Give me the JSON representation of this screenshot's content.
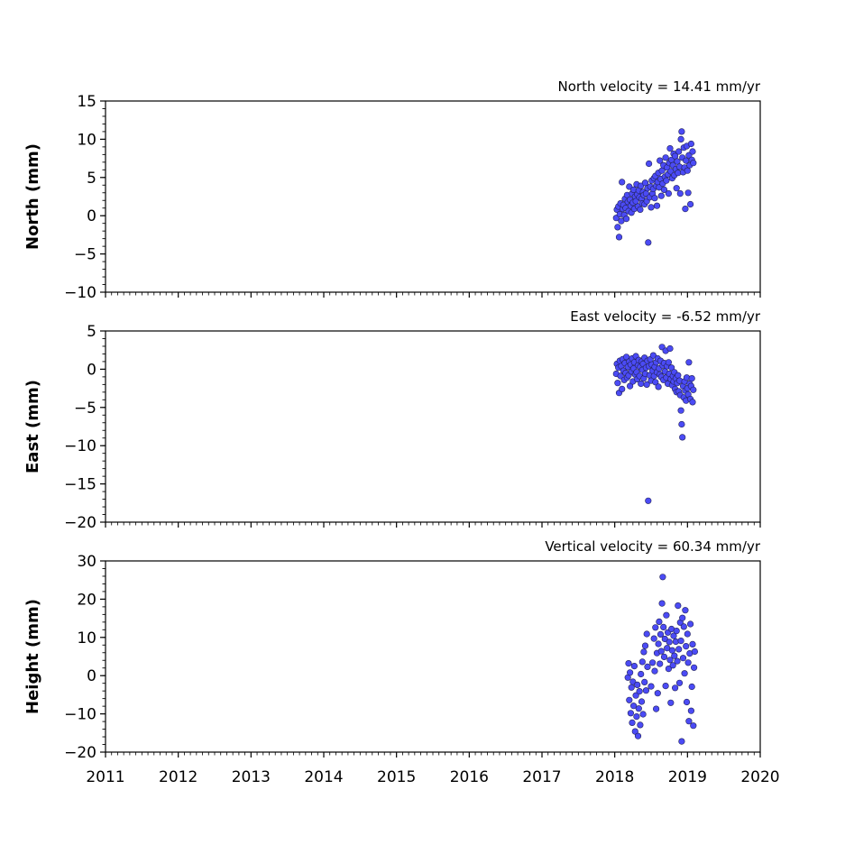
{
  "x_ticks": [
    "2011",
    "2012",
    "2013",
    "2014",
    "2015",
    "2016",
    "2017",
    "2018",
    "2019",
    "2020"
  ],
  "chart_data": [
    {
      "type": "scatter",
      "title": "North velocity = 14.41 mm/yr",
      "ylabel": "North (mm)",
      "xlim": [
        2011,
        2020
      ],
      "ylim": [
        -10,
        15
      ],
      "y_ticks": [
        -10,
        -5,
        0,
        5,
        10,
        15
      ],
      "y_tick_labels": [
        "−10",
        "−5",
        "0",
        "5",
        "10",
        "15"
      ],
      "marker_color": "#4b4bf5",
      "points": [
        [
          2018.02,
          -0.3
        ],
        [
          2018.03,
          0.8
        ],
        [
          2018.04,
          -1.5
        ],
        [
          2018.05,
          1.2
        ],
        [
          2018.06,
          -2.8
        ],
        [
          2018.07,
          0.2
        ],
        [
          2018.08,
          1.6
        ],
        [
          2018.09,
          -0.7
        ],
        [
          2018.1,
          4.4
        ],
        [
          2018.11,
          0.9
        ],
        [
          2018.12,
          1.4
        ],
        [
          2018.13,
          0.1
        ],
        [
          2018.14,
          2.2
        ],
        [
          2018.15,
          1.0
        ],
        [
          2018.16,
          -0.4
        ],
        [
          2018.17,
          2.7
        ],
        [
          2018.18,
          1.8
        ],
        [
          2018.19,
          0.6
        ],
        [
          2018.2,
          3.8
        ],
        [
          2018.21,
          2.1
        ],
        [
          2018.22,
          1.3
        ],
        [
          2018.23,
          0.4
        ],
        [
          2018.24,
          2.9
        ],
        [
          2018.25,
          1.7
        ],
        [
          2018.26,
          3.4
        ],
        [
          2018.27,
          0.9
        ],
        [
          2018.28,
          2.5
        ],
        [
          2018.29,
          1.9
        ],
        [
          2018.3,
          4.1
        ],
        [
          2018.31,
          2.8
        ],
        [
          2018.32,
          1.2
        ],
        [
          2018.33,
          3.3
        ],
        [
          2018.34,
          2.4
        ],
        [
          2018.35,
          0.8
        ],
        [
          2018.36,
          3.9
        ],
        [
          2018.37,
          2.2
        ],
        [
          2018.38,
          1.6
        ],
        [
          2018.39,
          3.1
        ],
        [
          2018.4,
          2.7
        ],
        [
          2018.41,
          1.5
        ],
        [
          2018.42,
          4.3
        ],
        [
          2018.43,
          2.9
        ],
        [
          2018.44,
          1.9
        ],
        [
          2018.45,
          3.6
        ],
        [
          2018.46,
          -3.5
        ],
        [
          2018.47,
          6.8
        ],
        [
          2018.48,
          2.4
        ],
        [
          2018.49,
          3.8
        ],
        [
          2018.5,
          1.1
        ],
        [
          2018.51,
          4.6
        ],
        [
          2018.52,
          2.9
        ],
        [
          2018.53,
          3.5
        ],
        [
          2018.54,
          4.9
        ],
        [
          2018.55,
          2.3
        ],
        [
          2018.56,
          5.2
        ],
        [
          2018.57,
          3.9
        ],
        [
          2018.58,
          1.3
        ],
        [
          2018.59,
          4.4
        ],
        [
          2018.6,
          5.6
        ],
        [
          2018.61,
          3.7
        ],
        [
          2018.62,
          7.2
        ],
        [
          2018.63,
          4.8
        ],
        [
          2018.64,
          2.6
        ],
        [
          2018.65,
          5.9
        ],
        [
          2018.66,
          4.2
        ],
        [
          2018.67,
          6.6
        ],
        [
          2018.68,
          3.4
        ],
        [
          2018.69,
          5.1
        ],
        [
          2018.7,
          7.6
        ],
        [
          2018.71,
          4.6
        ],
        [
          2018.72,
          6.3
        ],
        [
          2018.73,
          5.4
        ],
        [
          2018.74,
          2.9
        ],
        [
          2018.75,
          6.9
        ],
        [
          2018.76,
          8.8
        ],
        [
          2018.77,
          5.8
        ],
        [
          2018.78,
          7.3
        ],
        [
          2018.79,
          4.9
        ],
        [
          2018.8,
          6.6
        ],
        [
          2018.81,
          8.1
        ],
        [
          2018.82,
          5.3
        ],
        [
          2018.83,
          7.8
        ],
        [
          2018.84,
          6.1
        ],
        [
          2018.85,
          3.6
        ],
        [
          2018.86,
          7.1
        ],
        [
          2018.87,
          5.6
        ],
        [
          2018.88,
          8.4
        ],
        [
          2018.89,
          6.4
        ],
        [
          2018.9,
          2.9
        ],
        [
          2018.91,
          10.0
        ],
        [
          2018.92,
          11.0
        ],
        [
          2018.93,
          7.6
        ],
        [
          2018.94,
          5.7
        ],
        [
          2018.95,
          8.9
        ],
        [
          2018.96,
          6.3
        ],
        [
          2018.97,
          0.9
        ],
        [
          2018.98,
          7.2
        ],
        [
          2018.99,
          9.1
        ],
        [
          2019.0,
          5.9
        ],
        [
          2019.01,
          3.0
        ],
        [
          2019.02,
          7.9
        ],
        [
          2019.03,
          6.6
        ],
        [
          2019.04,
          1.5
        ],
        [
          2019.05,
          9.4
        ],
        [
          2019.06,
          7.3
        ],
        [
          2019.07,
          8.4
        ],
        [
          2019.08,
          6.9
        ]
      ]
    },
    {
      "type": "scatter",
      "title": "East velocity = -6.52 mm/yr",
      "ylabel": "East (mm)",
      "xlim": [
        2011,
        2020
      ],
      "ylim": [
        -20,
        5
      ],
      "y_ticks": [
        -20,
        -15,
        -10,
        -5,
        0,
        5
      ],
      "y_tick_labels": [
        "−20",
        "−15",
        "−10",
        "−5",
        "0",
        "5"
      ],
      "marker_color": "#4b4bf5",
      "points": [
        [
          2018.02,
          -0.6
        ],
        [
          2018.03,
          0.7
        ],
        [
          2018.04,
          -1.8
        ],
        [
          2018.05,
          0.2
        ],
        [
          2018.06,
          -3.1
        ],
        [
          2018.07,
          1.1
        ],
        [
          2018.08,
          -0.9
        ],
        [
          2018.09,
          0.4
        ],
        [
          2018.1,
          -2.6
        ],
        [
          2018.11,
          1.3
        ],
        [
          2018.12,
          -0.2
        ],
        [
          2018.13,
          -1.4
        ],
        [
          2018.14,
          0.8
        ],
        [
          2018.15,
          -0.5
        ],
        [
          2018.16,
          1.6
        ],
        [
          2018.17,
          -1.1
        ],
        [
          2018.18,
          0.3
        ],
        [
          2018.19,
          -0.8
        ],
        [
          2018.2,
          1.0
        ],
        [
          2018.21,
          -2.2
        ],
        [
          2018.22,
          0.6
        ],
        [
          2018.23,
          -0.3
        ],
        [
          2018.24,
          1.4
        ],
        [
          2018.25,
          -1.6
        ],
        [
          2018.26,
          0.1
        ],
        [
          2018.27,
          0.9
        ],
        [
          2018.28,
          -0.7
        ],
        [
          2018.29,
          1.7
        ],
        [
          2018.3,
          -0.4
        ],
        [
          2018.31,
          -1.3
        ],
        [
          2018.32,
          0.5
        ],
        [
          2018.33,
          1.2
        ],
        [
          2018.34,
          -0.9
        ],
        [
          2018.35,
          0.3
        ],
        [
          2018.36,
          -1.9
        ],
        [
          2018.37,
          1.0
        ],
        [
          2018.38,
          -0.1
        ],
        [
          2018.39,
          0.7
        ],
        [
          2018.4,
          -1.2
        ],
        [
          2018.41,
          1.5
        ],
        [
          2018.42,
          -0.6
        ],
        [
          2018.43,
          0.2
        ],
        [
          2018.44,
          -2.0
        ],
        [
          2018.45,
          1.1
        ],
        [
          2018.46,
          -17.2
        ],
        [
          2018.47,
          0.4
        ],
        [
          2018.48,
          -0.8
        ],
        [
          2018.49,
          1.3
        ],
        [
          2018.5,
          -1.5
        ],
        [
          2018.51,
          0.6
        ],
        [
          2018.52,
          -0.2
        ],
        [
          2018.53,
          1.8
        ],
        [
          2018.54,
          -0.9
        ],
        [
          2018.55,
          0.3
        ],
        [
          2018.56,
          -1.7
        ],
        [
          2018.57,
          0.9
        ],
        [
          2018.58,
          -0.4
        ],
        [
          2018.59,
          1.4
        ],
        [
          2018.6,
          -2.3
        ],
        [
          2018.61,
          0.1
        ],
        [
          2018.62,
          -0.7
        ],
        [
          2018.63,
          1.1
        ],
        [
          2018.64,
          -1.0
        ],
        [
          2018.65,
          2.9
        ],
        [
          2018.66,
          0.5
        ],
        [
          2018.67,
          -1.4
        ],
        [
          2018.68,
          0.8
        ],
        [
          2018.69,
          -0.3
        ],
        [
          2018.7,
          2.4
        ],
        [
          2018.71,
          -1.1
        ],
        [
          2018.72,
          0.4
        ],
        [
          2018.73,
          -1.9
        ],
        [
          2018.74,
          0.9
        ],
        [
          2018.75,
          -0.6
        ],
        [
          2018.76,
          2.7
        ],
        [
          2018.77,
          -1.3
        ],
        [
          2018.78,
          0.2
        ],
        [
          2018.79,
          -2.1
        ],
        [
          2018.8,
          -0.9
        ],
        [
          2018.81,
          -1.6
        ],
        [
          2018.82,
          -0.4
        ],
        [
          2018.83,
          -2.6
        ],
        [
          2018.84,
          -1.2
        ],
        [
          2018.85,
          -3.0
        ],
        [
          2018.86,
          -1.8
        ],
        [
          2018.87,
          -0.8
        ],
        [
          2018.88,
          -2.9
        ],
        [
          2018.89,
          -1.5
        ],
        [
          2018.9,
          -3.4
        ],
        [
          2018.91,
          -5.4
        ],
        [
          2018.92,
          -7.2
        ],
        [
          2018.93,
          -8.9
        ],
        [
          2018.94,
          -2.2
        ],
        [
          2018.95,
          -3.7
        ],
        [
          2018.96,
          -1.6
        ],
        [
          2018.97,
          -2.8
        ],
        [
          2018.98,
          -4.1
        ],
        [
          2018.99,
          -1.1
        ],
        [
          2019.0,
          -2.5
        ],
        [
          2019.01,
          -3.3
        ],
        [
          2019.02,
          0.9
        ],
        [
          2019.03,
          -1.9
        ],
        [
          2019.04,
          -3.9
        ],
        [
          2019.05,
          -2.2
        ],
        [
          2019.06,
          -1.2
        ],
        [
          2019.07,
          -4.3
        ],
        [
          2019.08,
          -2.7
        ]
      ]
    },
    {
      "type": "scatter",
      "title": "Vertical velocity = 60.34 mm/yr",
      "ylabel": "Height (mm)",
      "xlim": [
        2011,
        2020
      ],
      "ylim": [
        -20,
        30
      ],
      "y_ticks": [
        -20,
        -10,
        0,
        10,
        20,
        30
      ],
      "y_tick_labels": [
        "−20",
        "−10",
        "0",
        "10",
        "20",
        "30"
      ],
      "marker_color": "#4b4bf5",
      "points": [
        [
          2018.18,
          -0.5
        ],
        [
          2018.19,
          3.2
        ],
        [
          2018.2,
          -6.4
        ],
        [
          2018.21,
          0.8
        ],
        [
          2018.22,
          -9.8
        ],
        [
          2018.23,
          -3.1
        ],
        [
          2018.24,
          -12.3
        ],
        [
          2018.25,
          -1.6
        ],
        [
          2018.26,
          -7.9
        ],
        [
          2018.27,
          2.5
        ],
        [
          2018.28,
          -14.6
        ],
        [
          2018.29,
          -5.2
        ],
        [
          2018.3,
          -10.7
        ],
        [
          2018.31,
          -2.4
        ],
        [
          2018.32,
          -15.8
        ],
        [
          2018.33,
          -8.6
        ],
        [
          2018.34,
          -4.1
        ],
        [
          2018.35,
          -12.9
        ],
        [
          2018.36,
          0.4
        ],
        [
          2018.37,
          -6.8
        ],
        [
          2018.38,
          3.6
        ],
        [
          2018.39,
          -10.1
        ],
        [
          2018.4,
          6.2
        ],
        [
          2018.41,
          -1.7
        ],
        [
          2018.42,
          7.8
        ],
        [
          2018.43,
          -3.9
        ],
        [
          2018.44,
          10.9
        ],
        [
          2018.45,
          2.3
        ],
        [
          2018.5,
          -2.8
        ],
        [
          2018.52,
          3.4
        ],
        [
          2018.54,
          9.7
        ],
        [
          2018.55,
          1.2
        ],
        [
          2018.56,
          12.6
        ],
        [
          2018.57,
          -8.7
        ],
        [
          2018.58,
          5.9
        ],
        [
          2018.59,
          -4.6
        ],
        [
          2018.6,
          8.3
        ],
        [
          2018.61,
          14.1
        ],
        [
          2018.62,
          3.1
        ],
        [
          2018.63,
          10.8
        ],
        [
          2018.64,
          6.4
        ],
        [
          2018.65,
          18.9
        ],
        [
          2018.66,
          25.8
        ],
        [
          2018.67,
          12.7
        ],
        [
          2018.68,
          4.9
        ],
        [
          2018.69,
          9.6
        ],
        [
          2018.7,
          -2.7
        ],
        [
          2018.71,
          15.8
        ],
        [
          2018.72,
          7.2
        ],
        [
          2018.73,
          11.3
        ],
        [
          2018.74,
          1.8
        ],
        [
          2018.75,
          8.8
        ],
        [
          2018.76,
          4.1
        ],
        [
          2018.77,
          -7.1
        ],
        [
          2018.78,
          12.2
        ],
        [
          2018.79,
          6.6
        ],
        [
          2018.8,
          2.7
        ],
        [
          2018.81,
          10.4
        ],
        [
          2018.82,
          5.2
        ],
        [
          2018.83,
          -3.2
        ],
        [
          2018.84,
          8.9
        ],
        [
          2018.85,
          11.7
        ],
        [
          2018.86,
          3.8
        ],
        [
          2018.87,
          18.3
        ],
        [
          2018.88,
          6.9
        ],
        [
          2018.89,
          -1.9
        ],
        [
          2018.9,
          13.9
        ],
        [
          2018.91,
          9.1
        ],
        [
          2018.92,
          -17.2
        ],
        [
          2018.93,
          15.1
        ],
        [
          2018.94,
          4.6
        ],
        [
          2018.95,
          12.8
        ],
        [
          2018.96,
          0.6
        ],
        [
          2018.97,
          17.1
        ],
        [
          2018.98,
          7.7
        ],
        [
          2018.99,
          -6.9
        ],
        [
          2019.0,
          10.9
        ],
        [
          2019.01,
          3.4
        ],
        [
          2019.02,
          -11.9
        ],
        [
          2019.03,
          5.8
        ],
        [
          2019.04,
          13.5
        ],
        [
          2019.05,
          -9.2
        ],
        [
          2019.06,
          -2.9
        ],
        [
          2019.07,
          8.2
        ],
        [
          2019.08,
          -13.1
        ],
        [
          2019.09,
          2.1
        ],
        [
          2019.1,
          6.3
        ]
      ]
    }
  ]
}
